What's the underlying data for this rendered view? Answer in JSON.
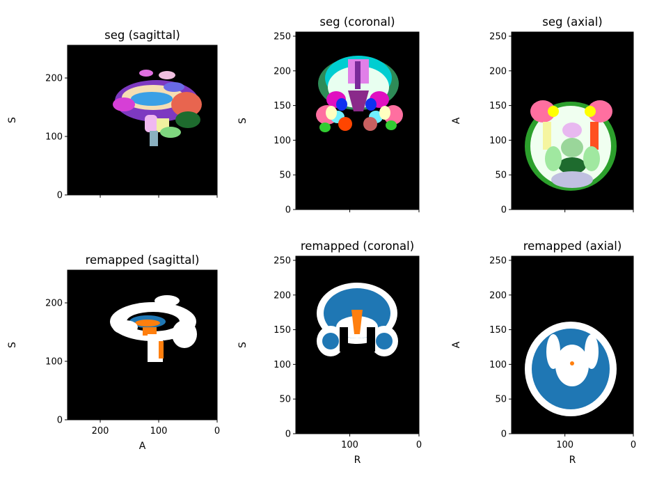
{
  "chart_data": [
    {
      "type": "heatmap",
      "title": "seg (sagittal)",
      "xlabel": "",
      "ylabel": "S",
      "xlim": [
        256,
        0
      ],
      "ylim": [
        0,
        256
      ],
      "xticks": [
        200,
        100,
        0
      ],
      "xtick_labels_visible": false,
      "yticks": [
        0,
        100,
        200
      ],
      "background": "#000000",
      "colormap": "FreeSurfer lookup table (multicolor labels)"
    },
    {
      "type": "heatmap",
      "title": "seg (coronal)",
      "xlabel": "",
      "ylabel": "S",
      "xlim": [
        178,
        0
      ],
      "ylim": [
        0,
        256
      ],
      "xticks": [
        100,
        0
      ],
      "xtick_labels_visible": false,
      "yticks": [
        0,
        50,
        100,
        150,
        200,
        250
      ],
      "background": "#000000",
      "colormap": "FreeSurfer lookup table (multicolor labels)"
    },
    {
      "type": "heatmap",
      "title": "seg (axial)",
      "xlabel": "",
      "ylabel": "A",
      "xlim": [
        178,
        0
      ],
      "ylim": [
        0,
        256
      ],
      "xticks": [
        100,
        0
      ],
      "xtick_labels_visible": false,
      "yticks": [
        0,
        50,
        100,
        150,
        200,
        250
      ],
      "background": "#000000",
      "colormap": "FreeSurfer lookup table (multicolor labels)"
    },
    {
      "type": "heatmap",
      "title": "remapped (sagittal)",
      "xlabel": "A",
      "ylabel": "S",
      "xlim": [
        256,
        0
      ],
      "ylim": [
        0,
        256
      ],
      "xticks": [
        200,
        100,
        0
      ],
      "xtick_labels_visible": true,
      "yticks": [
        0,
        100,
        200
      ],
      "background": "#000000",
      "colors": {
        "white": "#ffffff",
        "blue": "#1f77b4",
        "orange": "#ff7f0e"
      }
    },
    {
      "type": "heatmap",
      "title": "remapped (coronal)",
      "xlabel": "R",
      "ylabel": "S",
      "xlim": [
        178,
        0
      ],
      "ylim": [
        0,
        256
      ],
      "xticks": [
        100,
        0
      ],
      "xtick_labels_visible": true,
      "yticks": [
        0,
        50,
        100,
        150,
        200,
        250
      ],
      "background": "#000000",
      "colors": {
        "white": "#ffffff",
        "blue": "#1f77b4",
        "orange": "#ff7f0e"
      }
    },
    {
      "type": "heatmap",
      "title": "remapped (axial)",
      "xlabel": "R",
      "ylabel": "A",
      "xlim": [
        178,
        0
      ],
      "ylim": [
        0,
        256
      ],
      "xticks": [
        100,
        0
      ],
      "xtick_labels_visible": true,
      "yticks": [
        0,
        50,
        100,
        150,
        200,
        250
      ],
      "background": "#000000",
      "colors": {
        "white": "#ffffff",
        "blue": "#1f77b4",
        "orange": "#ff7f0e"
      }
    }
  ]
}
